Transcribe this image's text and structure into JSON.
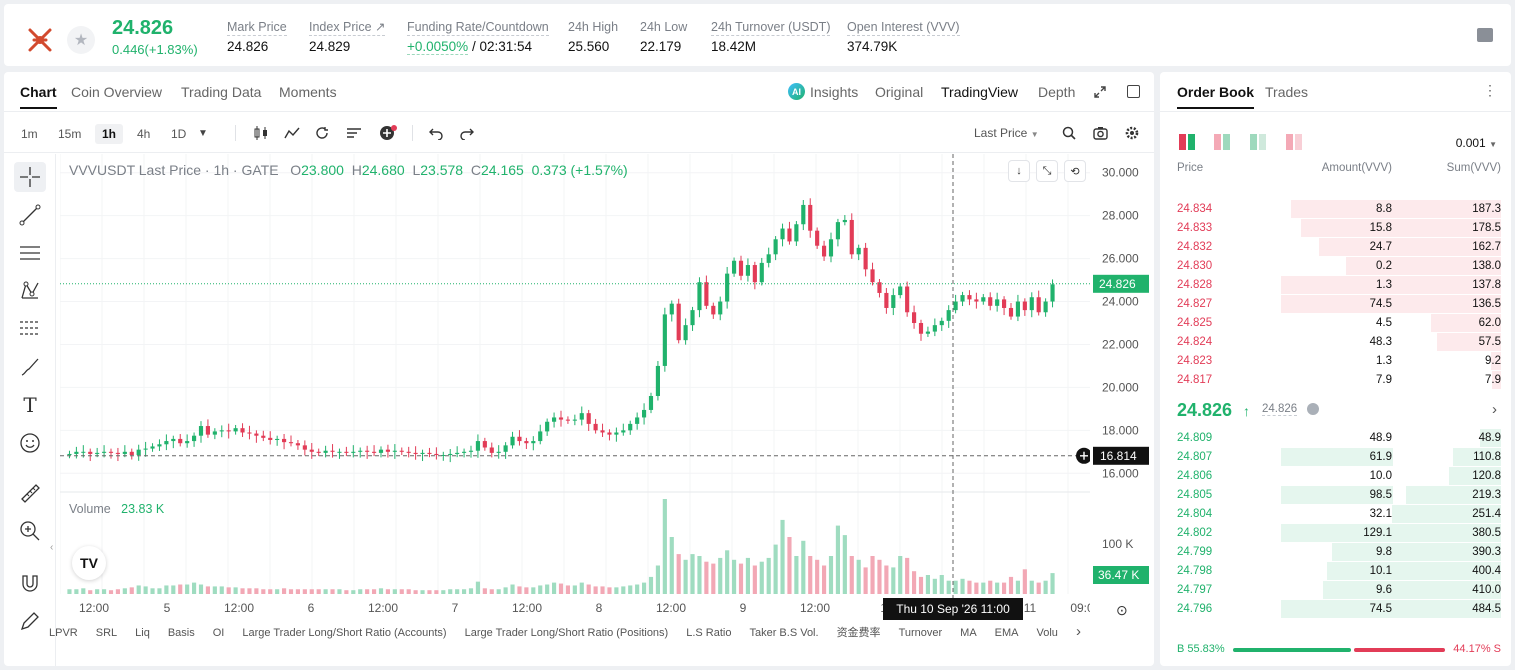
{
  "ticker": {
    "price": "24.826",
    "change": "0.446(+1.83%)",
    "stats": [
      {
        "label": "Mark Price",
        "value": "24.826"
      },
      {
        "label": "Index Price ↗",
        "value": "24.829"
      },
      {
        "label": "Funding Rate/Countdown",
        "value_green": "+0.0050%",
        "value": "/ 02:31:54"
      },
      {
        "label": "24h High",
        "value": "25.560"
      },
      {
        "label": "24h Low",
        "value": "22.179"
      },
      {
        "label": "24h Turnover (USDT)",
        "value": "18.42M"
      },
      {
        "label": "Open Interest (VVV)",
        "value": "374.79K"
      }
    ]
  },
  "chart_tabs": [
    "Chart",
    "Coin Overview",
    "Trading Data",
    "Moments"
  ],
  "chart_views": {
    "insights": "Insights",
    "original": "Original",
    "tradingview": "TradingView",
    "depth": "Depth"
  },
  "timeframes": [
    "1m",
    "15m",
    "1h",
    "4h",
    "1D"
  ],
  "active_timeframe": "1h",
  "price_source": "Last Price",
  "legend": {
    "symbol": "VVVUSDT Last Price · 1h · GATE",
    "o_label": "O",
    "o": "23.800",
    "h_label": "H",
    "h": "24.680",
    "l_label": "L",
    "l": "23.578",
    "c_label": "C",
    "c": "24.165",
    "chg": "0.373 (+1.57%)"
  },
  "volume_legend": {
    "label": "Volume",
    "value": "23.83 K"
  },
  "tv_logo": "TV",
  "crosshair_label": "Thu 10 Sep '26    11:00",
  "indicators": [
    "LPVR",
    "SRL",
    "Liq",
    "Basis",
    "OI",
    "Large Trader Long/Short Ratio (Accounts)",
    "Large Trader Long/Short Ratio (Positions)",
    "L.S Ratio",
    "Taker B.S Vol.",
    "资金费率",
    "Turnover",
    "MA",
    "EMA",
    "Volu"
  ],
  "chart_data": {
    "type": "line",
    "title": "VVVUSDT Last Price · 1h · GATE",
    "xlabel": "",
    "ylabel": "",
    "ylim": [
      15.5,
      30.5
    ],
    "y_ticks": [
      "30.000",
      "28.000",
      "26.000",
      "24.000",
      "22.000",
      "20.000",
      "18.000",
      "16.000"
    ],
    "x_ticks": [
      "12:00",
      "5",
      "12:00",
      "6",
      "12:00",
      "7",
      "12:00",
      "8",
      "12:00",
      "9",
      "12:00",
      "10",
      "11",
      "09:0"
    ],
    "vol_tick": "100 K",
    "last_price_label": "24.826",
    "crosshair_price_label": "16.814",
    "volume_label": "36.47 K",
    "series": [
      {
        "name": "",
        "values": [
          16.9,
          17.0,
          17.0,
          16.9,
          16.95,
          17.0,
          16.95,
          16.9,
          17.0,
          16.85,
          17.1,
          17.15,
          17.25,
          17.35,
          17.5,
          17.6,
          17.4,
          17.5,
          17.75,
          18.2,
          17.8,
          17.95,
          18.0,
          17.95,
          18.1,
          17.9,
          17.85,
          17.75,
          17.65,
          17.55,
          17.6,
          17.45,
          17.4,
          17.3,
          17.1,
          17.0,
          16.95,
          17.05,
          17.0,
          17.0,
          16.95,
          17.0,
          17.05,
          17.0,
          16.95,
          17.1,
          17.0,
          17.05,
          17.0,
          16.95,
          16.9,
          16.95,
          16.9,
          16.85,
          16.85,
          16.9,
          16.95,
          17.0,
          17.05,
          17.5,
          17.2,
          16.95,
          17.0,
          17.3,
          17.7,
          17.5,
          17.4,
          17.5,
          17.95,
          18.4,
          18.6,
          18.5,
          18.45,
          18.5,
          18.8,
          18.3,
          18.0,
          17.9,
          17.8,
          17.9,
          18.0,
          18.3,
          18.6,
          18.95,
          19.6,
          21.0,
          23.4,
          23.9,
          22.2,
          22.9,
          23.6,
          24.9,
          23.8,
          23.4,
          24.0,
          25.3,
          25.9,
          25.2,
          25.7,
          24.9,
          25.8,
          26.2,
          26.9,
          27.4,
          26.8,
          27.6,
          28.5,
          27.3,
          26.6,
          26.1,
          26.9,
          27.7,
          27.8,
          26.2,
          26.5,
          25.5,
          24.9,
          24.4,
          23.7,
          24.3,
          24.7,
          23.5,
          23.0,
          22.5,
          22.6,
          22.9,
          23.1,
          23.6,
          24.0,
          24.3,
          24.1,
          24.0,
          24.2,
          23.8,
          24.1,
          23.7,
          23.3,
          24.0,
          23.6,
          24.2,
          23.5,
          24.0,
          24.8
        ]
      }
    ],
    "volume": [
      5,
      5,
      6,
      4,
      5,
      5,
      4,
      5,
      6,
      7,
      9,
      8,
      6,
      6,
      9,
      9,
      10,
      10,
      12,
      10,
      8,
      8,
      8,
      7,
      7,
      6,
      6,
      6,
      5,
      5,
      5,
      6,
      5,
      5,
      5,
      5,
      5,
      5,
      5,
      5,
      4,
      4,
      5,
      5,
      5,
      6,
      5,
      5,
      5,
      5,
      4,
      4,
      4,
      4,
      4,
      5,
      5,
      5,
      6,
      13,
      6,
      5,
      5,
      7,
      10,
      8,
      7,
      7,
      9,
      10,
      12,
      11,
      9,
      9,
      12,
      10,
      8,
      8,
      7,
      7,
      8,
      9,
      10,
      12,
      18,
      30,
      100,
      60,
      42,
      36,
      42,
      40,
      34,
      32,
      38,
      46,
      36,
      32,
      38,
      30,
      34,
      38,
      52,
      78,
      60,
      40,
      56,
      40,
      36,
      30,
      40,
      72,
      62,
      40,
      36,
      28,
      40,
      36,
      30,
      28,
      40,
      38,
      24,
      18,
      20,
      16,
      20,
      14,
      14,
      16,
      14,
      12,
      12,
      14,
      12,
      12,
      18,
      14,
      26,
      14,
      12,
      14,
      22
    ]
  },
  "orderbook": {
    "tabs": [
      "Order Book",
      "Trades"
    ],
    "precision": "0.001",
    "headers": {
      "price": "Price",
      "amount": "Amount(VVV)",
      "sum": "Sum(VVV)"
    },
    "asks": [
      {
        "price": "24.834",
        "amount": "8.8",
        "sum": "187.3"
      },
      {
        "price": "24.833",
        "amount": "15.8",
        "sum": "178.5"
      },
      {
        "price": "24.832",
        "amount": "24.7",
        "sum": "162.7"
      },
      {
        "price": "24.830",
        "amount": "0.2",
        "sum": "138.0"
      },
      {
        "price": "24.828",
        "amount": "1.3",
        "sum": "137.8"
      },
      {
        "price": "24.827",
        "amount": "74.5",
        "sum": "136.5"
      },
      {
        "price": "24.825",
        "amount": "4.5",
        "sum": "62.0"
      },
      {
        "price": "24.824",
        "amount": "48.3",
        "sum": "57.5"
      },
      {
        "price": "24.823",
        "amount": "1.3",
        "sum": "9.2"
      },
      {
        "price": "24.817",
        "amount": "7.9",
        "sum": "7.9"
      }
    ],
    "mid": {
      "price": "24.826",
      "mark": "24.826"
    },
    "bids": [
      {
        "price": "24.809",
        "amount": "48.9",
        "sum": "48.9"
      },
      {
        "price": "24.807",
        "amount": "61.9",
        "sum": "110.8"
      },
      {
        "price": "24.806",
        "amount": "10.0",
        "sum": "120.8"
      },
      {
        "price": "24.805",
        "amount": "98.5",
        "sum": "219.3"
      },
      {
        "price": "24.804",
        "amount": "32.1",
        "sum": "251.4"
      },
      {
        "price": "24.802",
        "amount": "129.1",
        "sum": "380.5"
      },
      {
        "price": "24.799",
        "amount": "9.8",
        "sum": "390.3"
      },
      {
        "price": "24.798",
        "amount": "10.1",
        "sum": "400.4"
      },
      {
        "price": "24.797",
        "amount": "9.6",
        "sum": "410.0"
      },
      {
        "price": "24.796",
        "amount": "74.5",
        "sum": "484.5"
      }
    ],
    "buy_ratio": "B 55.83%",
    "sell_ratio": "44.17% S",
    "buy_fraction": 0.5583,
    "colors": {
      "up": "#20b26c",
      "down": "#e23c57"
    }
  }
}
